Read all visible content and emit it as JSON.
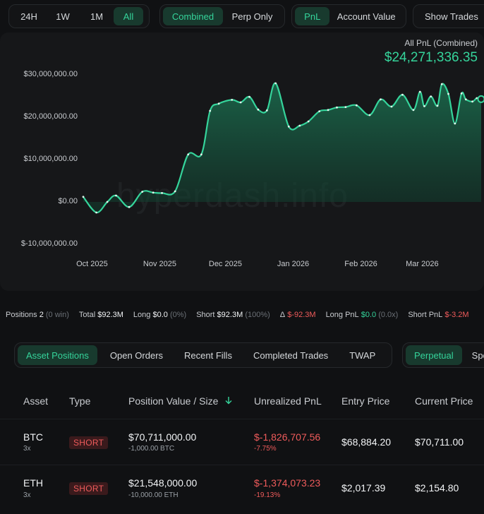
{
  "time_ranges": [
    {
      "label": "24H",
      "active": false
    },
    {
      "label": "1W",
      "active": false
    },
    {
      "label": "1M",
      "active": false
    },
    {
      "label": "All",
      "active": true
    }
  ],
  "scope": [
    {
      "label": "Combined",
      "active": true
    },
    {
      "label": "Perp Only",
      "active": false
    }
  ],
  "metric": [
    {
      "label": "PnL",
      "active": true
    },
    {
      "label": "Account Value",
      "active": false
    }
  ],
  "show_trades_label": "Show Trades",
  "chart_header": {
    "label": "All PnL (Combined)",
    "value": "$24,271,336.35"
  },
  "watermark": "hyperdash.info",
  "colors": {
    "accent": "#35d49b",
    "negative": "#ef5b5b",
    "tab_active_bg": "#183a2e"
  },
  "chart_data": {
    "type": "area",
    "y_tick_labels": [
      "$30,000,000.00",
      "$20,000,000.00",
      "$10,000,000.00",
      "$0.00",
      "$-10,000,000.00"
    ],
    "ylim": [
      -10000000,
      30000000
    ],
    "x_tick_labels": [
      "Oct 2025",
      "Nov 2025",
      "Dec 2025",
      "Jan 2026",
      "Feb 2026",
      "Mar 2026"
    ],
    "x_tick_dates": [
      "2025-10-01",
      "2025-11-01",
      "2025-12-01",
      "2026-01-01",
      "2026-02-01",
      "2026-03-01"
    ],
    "x": [
      "2025-09-27",
      "2025-10-03",
      "2025-10-08",
      "2025-10-12",
      "2025-10-18",
      "2025-10-24",
      "2025-10-29",
      "2025-11-02",
      "2025-11-08",
      "2025-11-14",
      "2025-11-20",
      "2025-11-24",
      "2025-11-28",
      "2025-12-04",
      "2025-12-08",
      "2025-12-12",
      "2025-12-16",
      "2025-12-20",
      "2025-12-24",
      "2025-12-30",
      "2026-01-04",
      "2026-01-08",
      "2026-01-13",
      "2026-01-17",
      "2026-01-21",
      "2026-01-25",
      "2026-01-30",
      "2026-02-05",
      "2026-02-10",
      "2026-02-15",
      "2026-02-20",
      "2026-02-25",
      "2026-02-28",
      "2026-03-02",
      "2026-03-05",
      "2026-03-08",
      "2026-03-10",
      "2026-03-13",
      "2026-03-16",
      "2026-03-19",
      "2026-03-21",
      "2026-03-24",
      "2026-03-26",
      "2026-03-28"
    ],
    "y": [
      1200000,
      -2500000,
      0,
      1500000,
      -1200000,
      2400000,
      2200000,
      2100000,
      2500000,
      11200000,
      11200000,
      21500000,
      23200000,
      24100000,
      23500000,
      24800000,
      21800000,
      21600000,
      28000000,
      17800000,
      18000000,
      19000000,
      21400000,
      21700000,
      22300000,
      22400000,
      22800000,
      20500000,
      24200000,
      22500000,
      25300000,
      21700000,
      26000000,
      22600000,
      24900000,
      22700000,
      27800000,
      25500000,
      18500000,
      25600000,
      24200000,
      23700000,
      24500000,
      24271336
    ]
  },
  "stats": {
    "positions_label": "Positions",
    "positions_value": "2",
    "positions_wins": "(0 win)",
    "total_label": "Total",
    "total_value": "$92.3M",
    "long_label": "Long",
    "long_value": "$0.0",
    "long_pct": "(0%)",
    "short_label": "Short",
    "short_value": "$92.3M",
    "short_pct": "(100%)",
    "delta_label": "Δ",
    "delta_value": "$-92.3M",
    "long_pnl_label": "Long PnL",
    "long_pnl_value": "$0.0",
    "long_pnl_mult": "(0.0x)",
    "short_pnl_label": "Short PnL",
    "short_pnl_value": "$-3.2M"
  },
  "position_tabs": [
    {
      "label": "Asset Positions",
      "active": true
    },
    {
      "label": "Open Orders",
      "active": false
    },
    {
      "label": "Recent Fills",
      "active": false
    },
    {
      "label": "Completed Trades",
      "active": false
    },
    {
      "label": "TWAP",
      "active": false
    }
  ],
  "market_tabs": [
    {
      "label": "Perpetual",
      "active": true
    },
    {
      "label": "Spot",
      "active": false
    }
  ],
  "table": {
    "columns": [
      "Asset",
      "Type",
      "Position Value / Size",
      "Unrealized PnL",
      "Entry Price",
      "Current Price"
    ],
    "sort_icon": "arrow-down-icon",
    "rows": [
      {
        "asset": "BTC",
        "leverage": "3x",
        "type": "SHORT",
        "value": "$70,711,000.00",
        "size": "-1,000.00 BTC",
        "pnl": "$-1,826,707.56",
        "pnl_pct": "-7.75%",
        "entry": "$68,884.20",
        "current": "$70,711.00"
      },
      {
        "asset": "ETH",
        "leverage": "3x",
        "type": "SHORT",
        "value": "$21,548,000.00",
        "size": "-10,000.00 ETH",
        "pnl": "$-1,374,073.23",
        "pnl_pct": "-19.13%",
        "entry": "$2,017.39",
        "current": "$2,154.80"
      }
    ]
  }
}
